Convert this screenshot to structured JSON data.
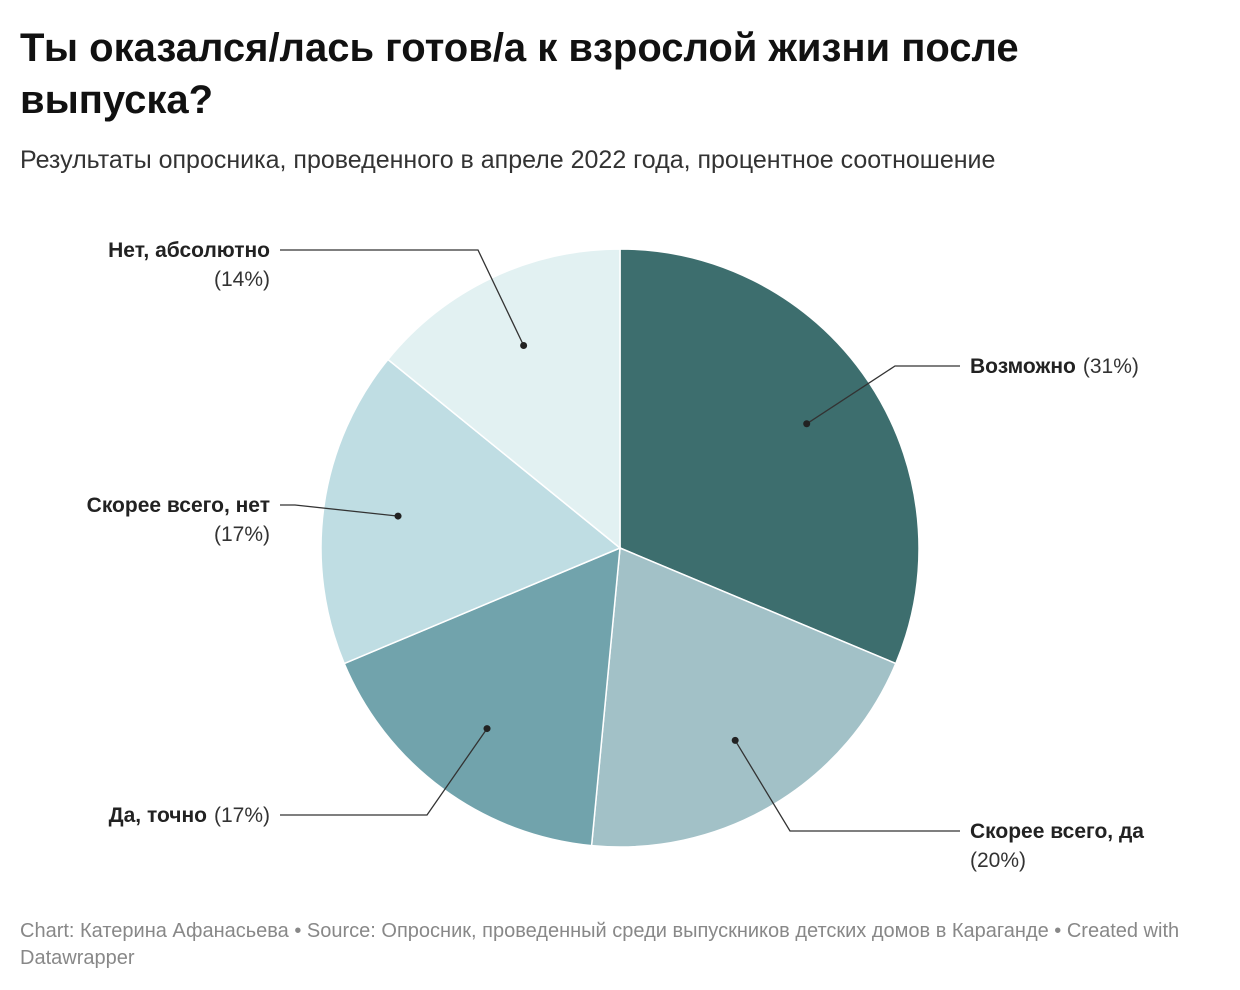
{
  "chart_data": {
    "type": "pie",
    "title": "Ты оказался/лась готов/а к взрослой жизни после выпуска?",
    "subtitle": "Результаты опросника, проведенного в апреле 2022 года, процентное соотношение",
    "categories": [
      "Возможно",
      "Скорее всего, да",
      "Да, точно",
      "Скорее всего, нет",
      "Нет, абсолютно"
    ],
    "values": [
      31,
      20,
      17,
      17,
      14
    ],
    "value_labels": [
      "(31%)",
      "(20%)",
      "(17%)",
      "(17%)",
      "(14%)"
    ],
    "colors": [
      "#3d6e6e",
      "#a2c1c7",
      "#71a3ac",
      "#bfdde3",
      "#e2f1f2"
    ],
    "footer": "Chart: Катерина Афанасьева • Source: Опросник, проведенный среди выпускников детских домов в Караганде • Created with Datawrapper"
  }
}
